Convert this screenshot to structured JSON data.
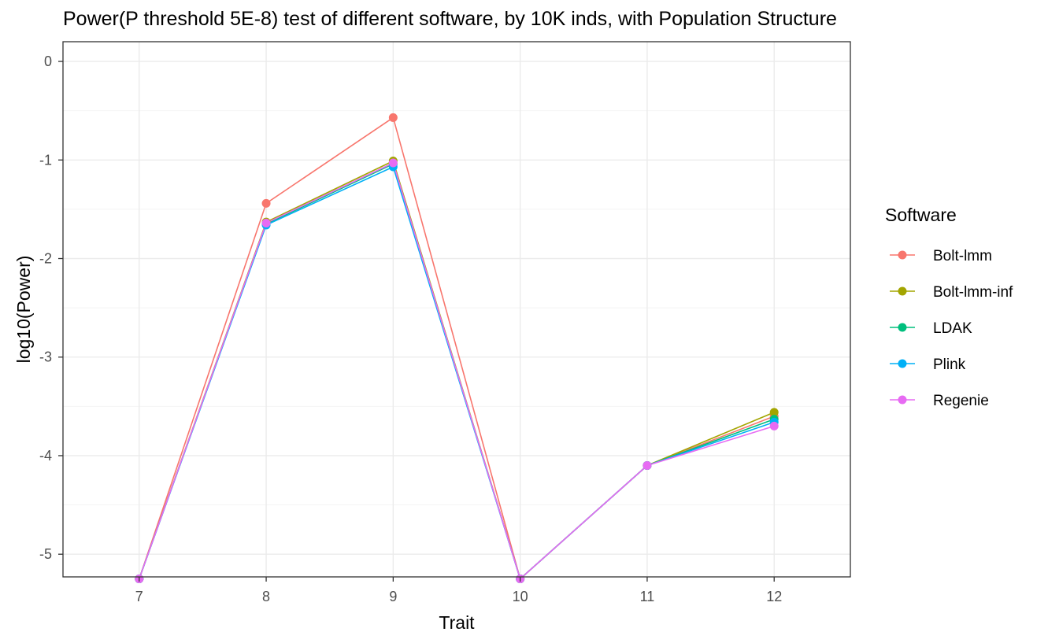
{
  "chart_data": {
    "type": "line",
    "title": "Power(P threshold 5E-8) test of different software, by 10K inds, with Population Structure",
    "xlabel": "Trait",
    "ylabel": "log10(Power)",
    "x": [
      7,
      8,
      9,
      10,
      11,
      12
    ],
    "xlim": [
      6.4,
      12.6
    ],
    "ylim": [
      -5.23,
      0.2
    ],
    "y_ticks": [
      0,
      -1,
      -2,
      -3,
      -4,
      -5
    ],
    "x_ticks": [
      7,
      8,
      9,
      10,
      11,
      12
    ],
    "grid": true,
    "legend": {
      "title": "Software",
      "placement": "right"
    },
    "series": [
      {
        "name": "Bolt-lmm",
        "color": "#F8766D",
        "values": [
          -5.25,
          -1.44,
          -0.57,
          -5.25,
          -4.1,
          -3.6
        ]
      },
      {
        "name": "Bolt-lmm-inf",
        "color": "#A3A500",
        "values": [
          -5.25,
          -1.63,
          -1.01,
          -5.25,
          -4.1,
          -3.56
        ]
      },
      {
        "name": "LDAK",
        "color": "#00BF7D",
        "values": [
          -5.25,
          -1.65,
          -1.04,
          -5.25,
          -4.1,
          -3.63
        ]
      },
      {
        "name": "Plink",
        "color": "#00B0F6",
        "values": [
          -5.25,
          -1.66,
          -1.07,
          -5.25,
          -4.1,
          -3.66
        ]
      },
      {
        "name": "Regenie",
        "color": "#E76BF3",
        "values": [
          -5.25,
          -1.64,
          -1.03,
          -5.25,
          -4.1,
          -3.7
        ]
      }
    ]
  }
}
